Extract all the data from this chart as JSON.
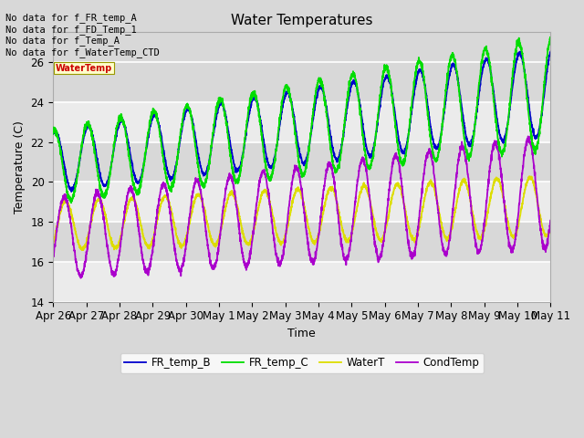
{
  "title": "Water Temperatures",
  "xlabel": "Time",
  "ylabel": "Temperature (C)",
  "ylim": [
    14,
    27.5
  ],
  "background_color": "#d8d8d8",
  "plot_bg_color": "#d8d8d8",
  "series": {
    "FR_temp_B": {
      "color": "#0000cc",
      "label": "FR_temp_B"
    },
    "FR_temp_C": {
      "color": "#00dd00",
      "label": "FR_temp_C"
    },
    "WaterT": {
      "color": "#dddd00",
      "label": "WaterT"
    },
    "CondTemp": {
      "color": "#aa00cc",
      "label": "CondTemp"
    }
  },
  "annotations": [
    "No data for f_FR_temp_A",
    "No data for f_FD_Temp_1",
    "No data for f_Temp_A",
    "No data for f_WaterTemp_CTD"
  ],
  "tick_labels": [
    "Apr 26",
    "Apr 27",
    "Apr 28",
    "Apr 29",
    "Apr 30",
    "May 1",
    "May 2",
    "May 3",
    "May 4",
    "May 5",
    "May 6",
    "May 7",
    "May 8",
    "May 9",
    "May 10",
    "May 11"
  ],
  "tick_positions": [
    0,
    1,
    2,
    3,
    4,
    5,
    6,
    7,
    8,
    9,
    10,
    11,
    12,
    13,
    14,
    15
  ],
  "yticks": [
    14,
    16,
    18,
    20,
    22,
    24,
    26
  ],
  "figsize": [
    6.4,
    4.8
  ],
  "dpi": 100
}
